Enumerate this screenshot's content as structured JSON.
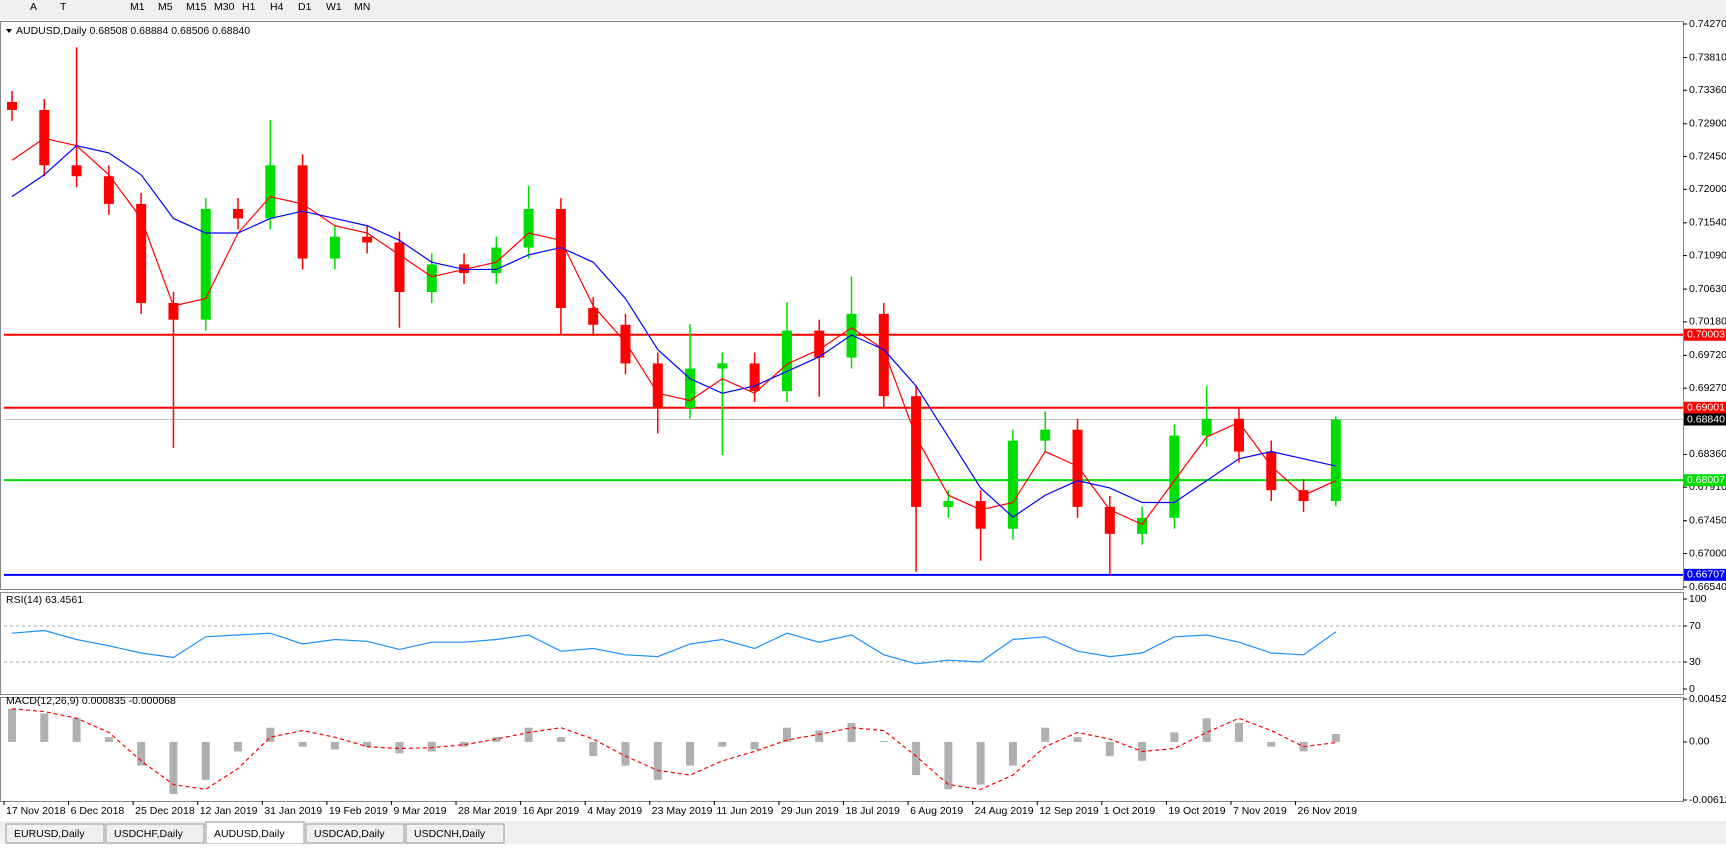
{
  "toolbar": {
    "tools": [
      "A",
      "T"
    ],
    "timeframes": [
      "M1",
      "M5",
      "M15",
      "M30",
      "H1",
      "H4",
      "D1",
      "W1",
      "MN"
    ]
  },
  "tabs": [
    "EURUSD,Daily",
    "USDCHF,Daily",
    "AUDUSD,Daily",
    "USDCAD,Daily",
    "USDCNH,Daily"
  ],
  "active_tab": 2,
  "chart_data": [
    {
      "type": "candlestick",
      "title": "AUDUSD,Daily  0.68508 0.68884 0.68506 0.68840",
      "categories": [
        "17 Nov 2018",
        null,
        "6 Dec 2018",
        null,
        "25 Dec 2018",
        null,
        "12 Jan 2019",
        null,
        "31 Jan 2019",
        null,
        "19 Feb 2019",
        null,
        "9 Mar 2019",
        null,
        "28 Mar 2019",
        null,
        "16 Apr 2019",
        null,
        "4 May 2019",
        null,
        "23 May 2019",
        null,
        "11 Jun 2019",
        null,
        "29 Jun 2019",
        null,
        "18 Jul 2019",
        null,
        "6 Aug 2019",
        null,
        "24 Aug 2019",
        null,
        "12 Sep 2019",
        null,
        "1 Oct 2019",
        null,
        "19 Oct 2019",
        null,
        "7 Nov 2019",
        null,
        "26 Nov 2019",
        null
      ],
      "open": [
        0.732,
        0.7309,
        0.7233,
        0.7218,
        0.718,
        0.7044,
        0.7021,
        0.7173,
        0.716,
        0.7233,
        0.7105,
        0.7135,
        0.7127,
        0.7059,
        0.7097,
        0.7085,
        0.712,
        0.7173,
        0.7037,
        0.7014,
        0.6961,
        0.69,
        0.6954,
        0.6961,
        0.6923,
        0.7006,
        0.6969,
        0.7029,
        0.6916,
        0.6764,
        0.6772,
        0.6734,
        0.6855,
        0.687,
        0.6764,
        0.6727,
        0.6749,
        0.6862,
        0.6885,
        0.684,
        0.6787,
        0.6772
      ],
      "high": [
        0.7335,
        0.7324,
        0.7395,
        0.7233,
        0.7195,
        0.7059,
        0.7188,
        0.7188,
        0.7295,
        0.7248,
        0.715,
        0.715,
        0.7142,
        0.7112,
        0.7112,
        0.7135,
        0.7205,
        0.7188,
        0.7052,
        0.7029,
        0.6976,
        0.7015,
        0.6976,
        0.6976,
        0.7045,
        0.7021,
        0.708,
        0.7044,
        0.6931,
        0.6787,
        0.6787,
        0.687,
        0.6895,
        0.6885,
        0.6779,
        0.6764,
        0.6877,
        0.693,
        0.69,
        0.6855,
        0.6802,
        0.6888
      ],
      "low": [
        0.7294,
        0.7218,
        0.7203,
        0.7165,
        0.7029,
        0.6845,
        0.7006,
        0.7145,
        0.7145,
        0.709,
        0.709,
        0.7112,
        0.701,
        0.7044,
        0.707,
        0.707,
        0.7105,
        0.7,
        0.6999,
        0.6946,
        0.6865,
        0.6885,
        0.6835,
        0.6908,
        0.6908,
        0.6915,
        0.6954,
        0.6901,
        0.6675,
        0.6749,
        0.669,
        0.6719,
        0.684,
        0.6749,
        0.667,
        0.6712,
        0.6734,
        0.6847,
        0.6825,
        0.6772,
        0.6757,
        0.6765
      ],
      "close": [
        0.7309,
        0.7233,
        0.7218,
        0.718,
        0.7044,
        0.7021,
        0.7173,
        0.716,
        0.7233,
        0.7105,
        0.7135,
        0.7127,
        0.7059,
        0.7097,
        0.7085,
        0.712,
        0.7173,
        0.7037,
        0.7014,
        0.6961,
        0.69,
        0.6954,
        0.6961,
        0.6923,
        0.7006,
        0.6969,
        0.7029,
        0.6916,
        0.6764,
        0.6772,
        0.6734,
        0.6855,
        0.687,
        0.6764,
        0.6727,
        0.6749,
        0.6862,
        0.6885,
        0.684,
        0.6787,
        0.6772,
        0.6884
      ],
      "up_color": "#00dd00",
      "down_color": "#ff0000",
      "overlays": [
        {
          "color": "#ff0000",
          "values": [
            0.724,
            0.727,
            0.726,
            0.722,
            0.716,
            0.704,
            0.705,
            0.714,
            0.719,
            0.718,
            0.715,
            0.714,
            0.711,
            0.708,
            0.709,
            0.71,
            0.714,
            0.713,
            0.704,
            0.699,
            0.692,
            0.691,
            0.694,
            0.692,
            0.696,
            0.698,
            0.701,
            0.698,
            0.686,
            0.678,
            0.676,
            0.677,
            0.684,
            0.682,
            0.676,
            0.674,
            0.68,
            0.686,
            0.688,
            0.682,
            0.678,
            0.68
          ]
        },
        {
          "color": "#0000ff",
          "values": [
            0.719,
            0.722,
            0.726,
            0.725,
            0.722,
            0.716,
            0.714,
            0.714,
            0.716,
            0.717,
            0.716,
            0.715,
            0.713,
            0.71,
            0.709,
            0.709,
            0.711,
            0.712,
            0.71,
            0.705,
            0.698,
            0.694,
            0.692,
            0.693,
            0.695,
            0.697,
            0.7,
            0.698,
            0.693,
            0.686,
            0.679,
            0.675,
            0.678,
            0.68,
            0.679,
            0.677,
            0.677,
            0.68,
            0.683,
            0.684,
            0.683,
            0.682
          ]
        }
      ],
      "levels": [
        {
          "value": 0.70003,
          "color": "#ff0000"
        },
        {
          "value": 0.69001,
          "color": "#ff0000"
        },
        {
          "value": 0.68007,
          "color": "#00dd00"
        },
        {
          "value": 0.66707,
          "color": "#0000ff"
        }
      ],
      "price_line": {
        "value": 0.6884,
        "label": "0.68840",
        "color": "#c0c0c0"
      },
      "ylim": [
        0.6654,
        0.7427
      ],
      "yticks": [
        {
          "value": 0.7427,
          "label": "0.74270"
        },
        {
          "value": 0.7381,
          "label": "0.73810"
        },
        {
          "value": 0.7336,
          "label": "0.73360"
        },
        {
          "value": 0.729,
          "label": "0.72900"
        },
        {
          "value": 0.7245,
          "label": "0.72450"
        },
        {
          "value": 0.72,
          "label": "0.72000"
        },
        {
          "value": 0.7154,
          "label": "0.71540"
        },
        {
          "value": 0.7109,
          "label": "0.71090"
        },
        {
          "value": 0.7063,
          "label": "0.70630"
        },
        {
          "value": 0.7018,
          "label": "0.70180"
        },
        {
          "value": 0.6972,
          "label": "0.69720"
        },
        {
          "value": 0.6927,
          "label": "0.69270"
        },
        {
          "value": 0.6836,
          "label": "0.68360"
        },
        {
          "value": 0.6791,
          "label": "0.67910"
        },
        {
          "value": 0.6745,
          "label": "0.67450"
        },
        {
          "value": 0.67,
          "label": "0.67000"
        },
        {
          "value": 0.6654,
          "label": "0.66540"
        }
      ]
    },
    {
      "type": "line",
      "title": "RSI(14) 63.4561",
      "values": [
        62,
        65,
        55,
        48,
        40,
        35,
        58,
        60,
        62,
        50,
        55,
        53,
        44,
        52,
        52,
        55,
        60,
        42,
        45,
        38,
        36,
        50,
        55,
        45,
        62,
        52,
        60,
        38,
        28,
        32,
        30,
        55,
        58,
        42,
        36,
        40,
        58,
        60,
        52,
        40,
        38,
        63.4561
      ],
      "color": "#1e90ff",
      "ylim": [
        0,
        100
      ],
      "yticks": [
        100,
        70,
        30,
        0
      ],
      "grid": true
    },
    {
      "type": "macd",
      "title": "MACD(12,26,9) 0.000835 -0.000068",
      "histogram": [
        0.0035,
        0.003,
        0.0025,
        0.0005,
        -0.0025,
        -0.0055,
        -0.004,
        -0.001,
        0.0015,
        -0.0005,
        -0.0008,
        -0.0005,
        -0.0012,
        -0.001,
        -0.0005,
        0.0005,
        0.0015,
        0.0005,
        -0.0015,
        -0.0025,
        -0.004,
        -0.0025,
        -0.0005,
        -0.0008,
        0.0015,
        0.0012,
        0.002,
        0.0001,
        -0.0035,
        -0.005,
        -0.0045,
        -0.0025,
        0.0015,
        0.0005,
        -0.0015,
        -0.002,
        0.001,
        0.0025,
        0.002,
        -0.0005,
        -0.001,
        0.000835
      ],
      "signal": [
        0.0035,
        0.0032,
        0.0025,
        0.001,
        -0.002,
        -0.0045,
        -0.005,
        -0.0028,
        0.0005,
        0.0012,
        0.0005,
        -0.0005,
        -0.0007,
        -0.0006,
        -0.0003,
        0.0003,
        0.001,
        0.0015,
        0.0003,
        -0.0015,
        -0.003,
        -0.0035,
        -0.002,
        -0.001,
        0.0002,
        0.0008,
        0.0015,
        0.0012,
        -0.0015,
        -0.0045,
        -0.005,
        -0.0035,
        -0.0005,
        0.001,
        0.0003,
        -0.001,
        -0.0007,
        0.001,
        0.0025,
        0.0012,
        -0.0005,
        -6.8e-05
      ],
      "hist_color": "#b0b0b0",
      "signal_color": "#ff0000",
      "ylim": [
        -0.006127,
        0.004528
      ],
      "yticks": [
        0.004528,
        {
          "value": 0,
          "label": "0.00"
        },
        -0.006127
      ]
    }
  ]
}
